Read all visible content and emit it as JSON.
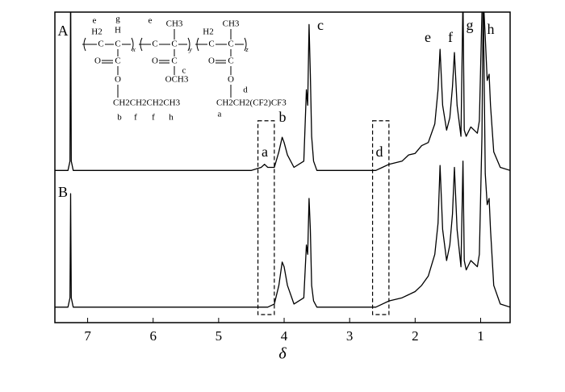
{
  "chart_data": {
    "type": "line",
    "x_label": "δ",
    "xlim": [
      7.5,
      0.55
    ],
    "xticks": [
      7,
      6,
      5,
      4,
      3,
      2,
      1
    ],
    "ylim": [
      0,
      100
    ],
    "x": [
      7.5,
      7.3,
      7.27,
      7.26,
      7.25,
      7.22,
      7.0,
      6.0,
      5.0,
      4.5,
      4.35,
      4.3,
      4.25,
      4.15,
      4.08,
      4.03,
      4.0,
      3.95,
      3.85,
      3.7,
      3.66,
      3.64,
      3.62,
      3.6,
      3.58,
      3.55,
      3.5,
      3.0,
      2.6,
      2.5,
      2.4,
      2.2,
      2.1,
      2.0,
      1.9,
      1.8,
      1.7,
      1.65,
      1.62,
      1.58,
      1.52,
      1.47,
      1.43,
      1.4,
      1.36,
      1.3,
      1.27,
      1.25,
      1.22,
      1.15,
      1.1,
      1.05,
      1.02,
      0.98,
      0.96,
      0.93,
      0.9,
      0.87,
      0.85,
      0.8,
      0.7,
      0.55
    ],
    "series": [
      {
        "name": "A",
        "color": "#000000",
        "values": [
          49,
          49,
          52,
          110,
          52,
          49,
          49,
          49,
          49,
          49,
          50,
          51,
          50,
          50,
          55,
          59.7,
          58,
          54,
          50,
          52,
          75,
          70,
          96,
          80,
          60,
          52,
          49,
          49,
          49,
          50,
          51,
          52,
          54,
          54.5,
          57,
          58,
          64,
          75,
          88,
          70,
          62,
          66,
          76,
          87,
          70,
          60,
          105,
          62,
          60,
          63,
          62,
          61,
          65,
          100,
          105,
          92,
          78,
          80,
          70,
          55,
          50,
          49
        ]
      },
      {
        "name": "B",
        "color": "#000000",
        "values": [
          5,
          5,
          8,
          41.5,
          8,
          5,
          5,
          5,
          5,
          5,
          5,
          5,
          5,
          6,
          12,
          19.5,
          18,
          12,
          6,
          8,
          25,
          22,
          40,
          30,
          12,
          7,
          5,
          5,
          5,
          6,
          7,
          8,
          9,
          10,
          12,
          15,
          22,
          32,
          50.6,
          30,
          20,
          25,
          35,
          50,
          30,
          18,
          52,
          20,
          17,
          20,
          19,
          18,
          22,
          60,
          105,
          48,
          38,
          40,
          30,
          12,
          6,
          5
        ]
      }
    ],
    "highlight_regions": [
      {
        "xlim": [
          4.4,
          4.15
        ],
        "ylim": [
          2.6,
          65
        ]
      },
      {
        "xlim": [
          2.65,
          2.4
        ],
        "ylim": [
          2.6,
          65
        ]
      }
    ],
    "peak_labels": [
      "a",
      "b",
      "c",
      "d",
      "e",
      "f",
      "g",
      "h"
    ],
    "structure_text": [
      "e",
      "g",
      "e",
      "H2",
      "H",
      "CH3",
      "H2",
      "CH3",
      "C",
      "C",
      "C",
      "C",
      "C",
      "C",
      "x",
      "y",
      "z",
      "O",
      "C",
      "O",
      "C",
      "O",
      "C",
      "c",
      "O",
      "OCH3",
      "O",
      "CH2CH2CH2CH3",
      "CH2CH2(CF2)CF3",
      "b",
      "f",
      "f",
      "h",
      "a",
      "d"
    ]
  }
}
